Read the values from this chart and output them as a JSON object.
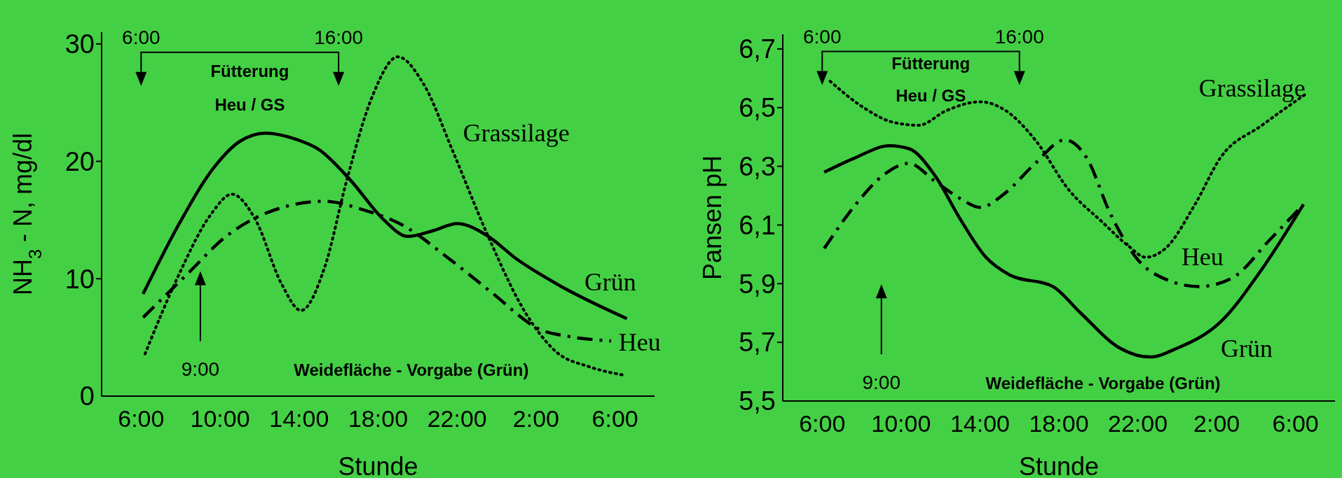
{
  "chart_data": [
    {
      "type": "line",
      "xlabel": "Stunde",
      "ylabel": "NH$_{3}$ - N, mg/dl",
      "xlim": [
        "2000-01-01T04:00",
        "2000-01-02T08:00"
      ],
      "ylim": [
        0,
        31
      ],
      "xticks": [
        {
          "value": "2000-01-01T06:00",
          "label": "6:00"
        },
        {
          "value": "2000-01-01T10:00",
          "label": "10:00"
        },
        {
          "value": "2000-01-01T14:00",
          "label": "14:00"
        },
        {
          "value": "2000-01-01T18:00",
          "label": "18:00"
        },
        {
          "value": "2000-01-01T22:00",
          "label": "22:00"
        },
        {
          "value": "2000-01-02T02:00",
          "label": "2:00"
        },
        {
          "value": "2000-01-02T06:00",
          "label": "6:00"
        }
      ],
      "yticks": [
        0,
        10,
        20,
        30
      ],
      "marker": "none",
      "series": [
        {
          "name": "Grün",
          "color": "#000000",
          "line_style": "solid",
          "x": [
            "2000-01-01T06:06",
            "2000-01-01T07:54",
            "2000-01-01T09:42",
            "2000-01-01T11:00",
            "2000-01-01T12:18",
            "2000-01-01T13:48",
            "2000-01-01T15:00",
            "2000-01-01T16:36",
            "2000-01-01T18:18",
            "2000-01-01T19:30",
            "2000-01-01T20:48",
            "2000-01-01T22:00",
            "2000-01-01T23:30",
            "2000-01-02T01:00",
            "2000-01-02T03:00",
            "2000-01-02T06:36"
          ],
          "values": [
            8.7,
            14.6,
            19.5,
            21.7,
            22.4,
            21.9,
            21,
            18.4,
            15,
            13.6,
            14.1,
            14.7,
            13.7,
            11.7,
            9.6,
            6.6
          ]
        },
        {
          "name": "Heu",
          "color": "#000000",
          "line_style": "dashdot",
          "x": [
            "2000-01-01T06:06",
            "2000-01-01T08:24",
            "2000-01-01T10:18",
            "2000-01-01T12:30",
            "2000-01-01T15:18",
            "2000-01-01T17:12",
            "2000-01-01T19:12",
            "2000-01-01T21:36",
            "2000-01-01T23:42",
            "2000-01-02T02:18",
            "2000-01-02T03:36",
            "2000-01-02T05:48"
          ],
          "values": [
            6.7,
            10.5,
            13.6,
            15.7,
            16.6,
            15.9,
            14.6,
            11.7,
            8.9,
            5.6,
            5.1,
            4.7
          ]
        },
        {
          "name": "Grassilage",
          "color": "#000000",
          "line_style": "dotted",
          "x": [
            "2000-01-01T06:12",
            "2000-01-01T07:54",
            "2000-01-01T09:30",
            "2000-01-01T10:36",
            "2000-01-01T11:48",
            "2000-01-01T13:06",
            "2000-01-01T14:06",
            "2000-01-01T15:18",
            "2000-01-01T16:24",
            "2000-01-01T17:42",
            "2000-01-01T19:00",
            "2000-01-01T20:18",
            "2000-01-01T21:48",
            "2000-01-01T23:30",
            "2000-01-02T01:30",
            "2000-01-02T03:00",
            "2000-01-02T04:42",
            "2000-01-02T06:24"
          ],
          "values": [
            3.6,
            10.3,
            15.4,
            17.2,
            15,
            9.6,
            7.3,
            11,
            18.3,
            25.5,
            28.9,
            26.6,
            20.8,
            13.9,
            7,
            3.8,
            2.5,
            1.8
          ]
        }
      ],
      "annotations": [
        "6:00",
        "16:00",
        "Fütterung",
        "Heu / GS",
        "9:00",
        "Weidefläche - Vorgabe (Grün)"
      ]
    },
    {
      "type": "line",
      "xlabel": "Stunde",
      "ylabel": "Pansen pH",
      "xlim": [
        "2000-01-01T04:00",
        "2000-01-02T08:00"
      ],
      "ylim": [
        5.5,
        6.75
      ],
      "xticks": [
        {
          "value": "2000-01-01T06:00",
          "label": "6:00"
        },
        {
          "value": "2000-01-01T10:00",
          "label": "10:00"
        },
        {
          "value": "2000-01-01T14:00",
          "label": "14:00"
        },
        {
          "value": "2000-01-01T18:00",
          "label": "18:00"
        },
        {
          "value": "2000-01-01T22:00",
          "label": "22:00"
        },
        {
          "value": "2000-01-02T02:00",
          "label": "2:00"
        },
        {
          "value": "2000-01-02T06:00",
          "label": "6:00"
        }
      ],
      "yticks": [
        {
          "value": 5.5,
          "label": "5,5"
        },
        {
          "value": 5.7,
          "label": "5,7"
        },
        {
          "value": 5.9,
          "label": "5,9"
        },
        {
          "value": 6.1,
          "label": "6,1"
        },
        {
          "value": 6.3,
          "label": "6,3"
        },
        {
          "value": 6.5,
          "label": "6,5"
        },
        {
          "value": 6.7,
          "label": "6,7"
        }
      ],
      "marker": "none",
      "series": [
        {
          "name": "Grün",
          "color": "#000000",
          "line_style": "solid",
          "x": [
            "2000-01-01T06:06",
            "2000-01-01T07:42",
            "2000-01-01T09:24",
            "2000-01-01T10:24",
            "2000-01-01T11:42",
            "2000-01-01T13:00",
            "2000-01-01T14:18",
            "2000-01-01T15:30",
            "2000-01-01T17:42",
            "2000-01-01T19:06",
            "2000-01-01T21:06",
            "2000-01-01T22:36",
            "2000-01-02T00:00",
            "2000-01-02T02:12",
            "2000-01-02T04:18",
            "2000-01-02T06:24"
          ],
          "values": [
            6.28,
            6.33,
            6.37,
            6.36,
            6.27,
            6.12,
            5.99,
            5.93,
            5.89,
            5.8,
            5.68,
            5.65,
            5.68,
            5.77,
            5.95,
            6.17
          ]
        },
        {
          "name": "Heu",
          "color": "#000000",
          "line_style": "dashdot",
          "x": [
            "2000-01-01T06:06",
            "2000-01-01T07:42",
            "2000-01-01T09:06",
            "2000-01-01T10:24",
            "2000-01-01T11:42",
            "2000-01-01T13:00",
            "2000-01-01T14:00",
            "2000-01-01T15:18",
            "2000-01-01T16:48",
            "2000-01-01T18:18",
            "2000-01-01T19:24",
            "2000-01-01T20:36",
            "2000-01-01T21:54",
            "2000-01-01T23:36",
            "2000-01-02T01:06",
            "2000-01-02T02:48",
            "2000-01-02T04:42",
            "2000-01-02T06:24"
          ],
          "values": [
            6.02,
            6.17,
            6.27,
            6.31,
            6.25,
            6.19,
            6.16,
            6.21,
            6.31,
            6.39,
            6.33,
            6.14,
            5.99,
            5.91,
            5.89,
            5.92,
            6.05,
            6.17
          ]
        },
        {
          "name": "Grassilage",
          "color": "#000000",
          "line_style": "dotted",
          "x": [
            "2000-01-01T06:24",
            "2000-01-01T08:06",
            "2000-01-01T09:36",
            "2000-01-01T10:54",
            "2000-01-01T12:18",
            "2000-01-01T14:00",
            "2000-01-01T15:18",
            "2000-01-01T16:48",
            "2000-01-01T18:30",
            "2000-01-01T20:12",
            "2000-01-01T21:30",
            "2000-01-01T22:24",
            "2000-01-01T23:24",
            "2000-01-02T00:54",
            "2000-01-02T02:12",
            "2000-01-02T04:18",
            "2000-01-02T06:36"
          ],
          "values": [
            6.59,
            6.5,
            6.45,
            6.44,
            6.49,
            6.52,
            6.49,
            6.39,
            6.22,
            6.11,
            6.03,
            5.99,
            6.02,
            6.17,
            6.33,
            6.44,
            6.55
          ]
        }
      ],
      "annotations": [
        "6:00",
        "16:00",
        "Fütterung",
        "Heu / GS",
        "9:00",
        "Weidefläche - Vorgabe (Grün)"
      ]
    }
  ]
}
